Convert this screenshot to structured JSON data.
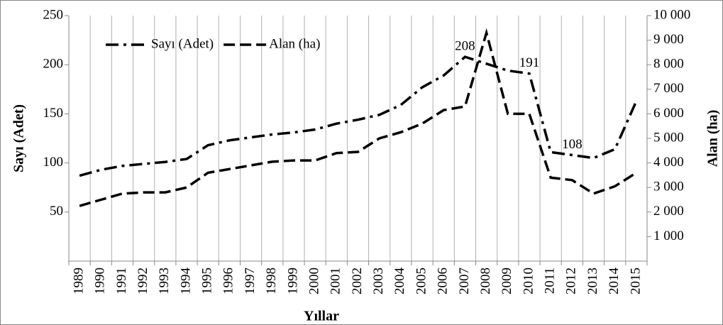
{
  "chart_data": {
    "type": "line",
    "xlabel": "Yıllar",
    "ylabel": "Sayı (Adet)",
    "y2label": "Alan (ha)",
    "categories": [
      "1989",
      "1990",
      "1991",
      "1992",
      "1993",
      "1994",
      "1995",
      "1996",
      "1997",
      "1998",
      "1999",
      "2000",
      "2001",
      "2002",
      "2003",
      "2004",
      "2005",
      "2006",
      "2007",
      "2008",
      "2009",
      "2010",
      "2011",
      "2012",
      "2013",
      "2014",
      "2015"
    ],
    "series": [
      {
        "name": "Sayı (Adet)",
        "color": "#000000",
        "dash": "dash-dot",
        "values": [
          87,
          93,
          97,
          99,
          101,
          104,
          118,
          123,
          126,
          129,
          131,
          134,
          140,
          144,
          149,
          159,
          177,
          189,
          208,
          201,
          194,
          191,
          111,
          108,
          105,
          114,
          163
        ],
        "value_labels": [
          null,
          null,
          null,
          null,
          null,
          null,
          null,
          null,
          null,
          null,
          null,
          null,
          null,
          null,
          null,
          null,
          null,
          null,
          "208",
          null,
          null,
          "191",
          null,
          "108",
          null,
          null,
          null
        ]
      },
      {
        "name": "Alan (ha)",
        "color": "#000000",
        "dash": "dash",
        "axis": "y2",
        "values": [
          2250,
          2500,
          2750,
          2800,
          2800,
          3000,
          3600,
          3750,
          3900,
          4050,
          4100,
          4100,
          4400,
          4450,
          5000,
          5250,
          5600,
          6150,
          6300,
          9300,
          6000,
          6000,
          3400,
          3300,
          2750,
          3050,
          3600
        ]
      }
    ],
    "ylim": [
      0,
      250
    ],
    "yticks": [
      50,
      100,
      150,
      200,
      250
    ],
    "y2lim": [
      0,
      10000
    ],
    "y2ticks": [
      {
        "value": 1000,
        "label": "1 000"
      },
      {
        "value": 2000,
        "label": "2 000"
      },
      {
        "value": 3000,
        "label": "3 000"
      },
      {
        "value": 4000,
        "label": "4 000"
      },
      {
        "value": 5000,
        "label": "5 000"
      },
      {
        "value": 6000,
        "label": "6 000"
      },
      {
        "value": 7000,
        "label": "7 000"
      },
      {
        "value": 8000,
        "label": "8 000"
      },
      {
        "value": 9000,
        "label": "9 000"
      },
      {
        "value": 10000,
        "label": "10 000"
      }
    ],
    "grid": "x",
    "legend": "top-left"
  }
}
